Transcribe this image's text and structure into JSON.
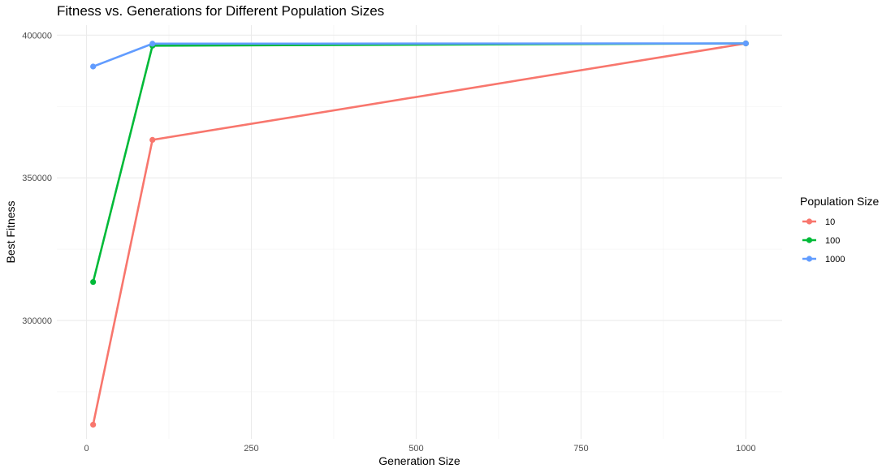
{
  "chart_data": {
    "type": "line",
    "title": "Fitness vs. Generations for Different Population Sizes",
    "xlabel": "Generation Size",
    "ylabel": "Best Fitness",
    "x": [
      10,
      100,
      1000
    ],
    "xlim": [
      -45,
      1055
    ],
    "ylim": [
      258500,
      403500
    ],
    "x_ticks": [
      0,
      250,
      500,
      750,
      1000
    ],
    "x_tick_labels": [
      "0",
      "250",
      "500",
      "750",
      "1000"
    ],
    "y_ticks": [
      300000,
      350000,
      400000
    ],
    "y_tick_labels": [
      "300000",
      "350000",
      "400000"
    ],
    "grid": true,
    "legend": {
      "title": "Population Size",
      "position": "right"
    },
    "series": [
      {
        "name": "10",
        "color": "#F8766D",
        "values": [
          263500,
          363300,
          397100
        ]
      },
      {
        "name": "100",
        "color": "#00BA38",
        "values": [
          313500,
          396300,
          397100
        ]
      },
      {
        "name": "1000",
        "color": "#619CFF",
        "values": [
          389000,
          397000,
          397100
        ]
      }
    ]
  }
}
